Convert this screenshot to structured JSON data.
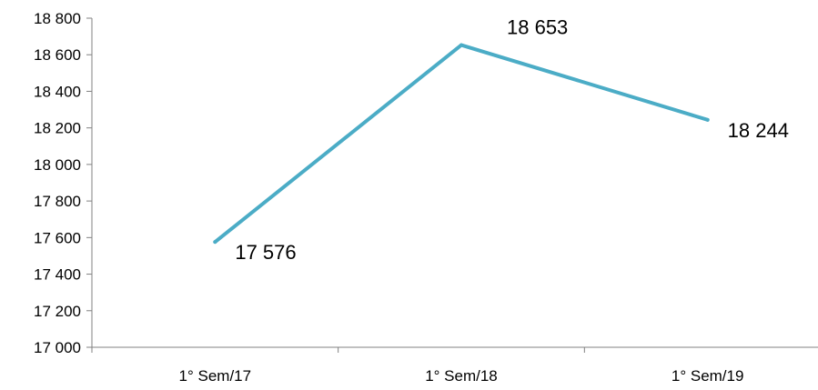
{
  "chart_data": {
    "type": "line",
    "title": "",
    "xlabel": "",
    "ylabel": "",
    "categories": [
      "1° Sem/17",
      "1° Sem/18",
      "1° Sem/19"
    ],
    "series": [
      {
        "values": [
          17576,
          18653,
          18244
        ]
      }
    ],
    "data_labels": [
      "17 576",
      "18 653",
      "18 244"
    ],
    "ylim": [
      17000,
      18800
    ],
    "ytick_values": [
      17000,
      17200,
      17400,
      17600,
      17800,
      18000,
      18200,
      18400,
      18600,
      18800
    ],
    "ytick_labels": [
      "17 000",
      "17 200",
      "17 400",
      "17 600",
      "17 800",
      "18 000",
      "18 200",
      "18 400",
      "18 600",
      "18 800"
    ],
    "grid": false,
    "legend": "none",
    "line_color": "#4BACC6"
  }
}
